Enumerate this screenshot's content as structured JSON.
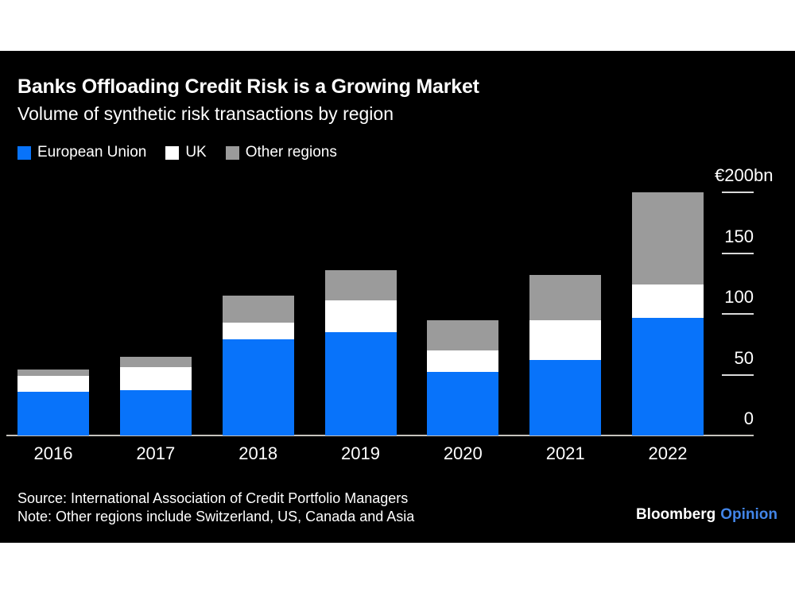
{
  "header": {
    "title": "Banks Offloading Credit Risk is a Growing Market",
    "subtitle": "Volume of synthetic risk transactions by region"
  },
  "legend": {
    "items": [
      {
        "label": "European Union",
        "color": "#0873fa"
      },
      {
        "label": "UK",
        "color": "#ffffff"
      },
      {
        "label": "Other regions",
        "color": "#9b9b9b"
      }
    ]
  },
  "chart_data": {
    "type": "bar",
    "stacked": true,
    "title": "Banks Offloading Credit Risk is a Growing Market",
    "subtitle": "Volume of synthetic risk transactions by region",
    "unit": "€bn",
    "categories": [
      "2016",
      "2017",
      "2018",
      "2019",
      "2020",
      "2021",
      "2022"
    ],
    "series": [
      {
        "name": "European Union",
        "color": "#0873fa",
        "values": [
          36,
          37,
          79,
          85,
          52,
          62,
          97
        ]
      },
      {
        "name": "UK",
        "color": "#ffffff",
        "values": [
          13,
          19,
          14,
          26,
          18,
          33,
          27
        ]
      },
      {
        "name": "Other regions",
        "color": "#9b9b9b",
        "values": [
          5,
          9,
          22,
          25,
          25,
          37,
          76
        ]
      }
    ],
    "totals": [
      54,
      65,
      115,
      136,
      95,
      132,
      200
    ],
    "ylim": [
      0,
      200
    ],
    "yticks": [
      {
        "value": 0,
        "label": "0"
      },
      {
        "value": 50,
        "label": "50"
      },
      {
        "value": 100,
        "label": "100"
      },
      {
        "value": 150,
        "label": "150"
      },
      {
        "value": 200,
        "label": "€200",
        "suffix": "bn"
      }
    ],
    "legend_position": "top-left",
    "grid": false,
    "axis_color": "#c6c3bd"
  },
  "footer": {
    "source": "Source: International Association of Credit Portfolio Managers",
    "note": "Note: Other regions include Switzerland, US, Canada and Asia",
    "logo": {
      "brand": "Bloomberg",
      "product": "Opinion",
      "product_color": "#4285e8"
    }
  }
}
